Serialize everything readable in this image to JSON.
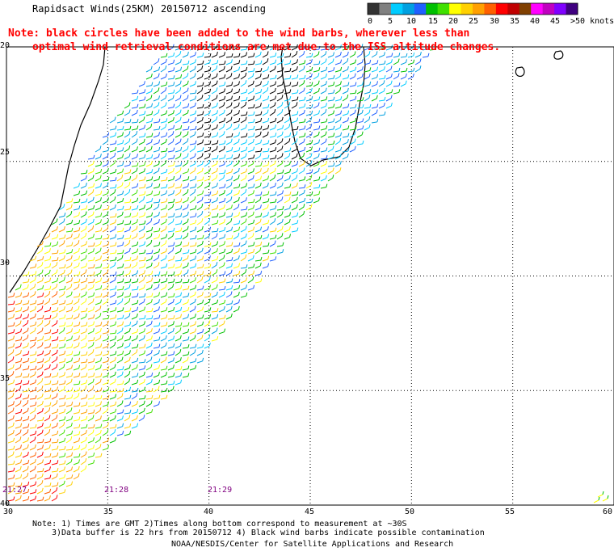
{
  "map": {
    "title": "Rapidsact Winds(25KM) 20150712 ascending",
    "note_line1": "Note: black circles have been added to the wind barbs, wherever less than",
    "note_line2": "optimal wind retrieval conditions are met due to the ISS altitude changes.",
    "lat_labels": [
      "-20",
      "-25",
      "-30",
      "-35",
      "-40"
    ],
    "lon_labels": [
      "30",
      "35",
      "40",
      "45",
      "50",
      "55",
      "60"
    ],
    "time_labels": [
      "21:27",
      "21:28",
      "21:29"
    ],
    "footer_line1": "Note: 1) Times are GMT 2)Times along bottom correspond to measurement at ~30S",
    "footer_line2": "3)Data buffer is 22 hrs from 20150712 4) Black wind barbs indicate possible contamination",
    "footer_line3": "NOAA/NESDIS/Center for Satellite Applications and Research",
    "extent": {
      "lon": [
        30,
        60
      ],
      "lat": [
        -40,
        -20
      ]
    }
  },
  "legend": {
    "labels": [
      "0",
      "5",
      "10",
      "15",
      "20",
      "25",
      "30",
      "35",
      "40",
      "45",
      ">50 knots"
    ],
    "colors": [
      "#333333",
      "#808080",
      "#00ccff",
      "#00a0e0",
      "#2060ff",
      "#00c000",
      "#40e000",
      "#ffff00",
      "#ffd000",
      "#ffa000",
      "#ff6000",
      "#ff0000",
      "#c00000",
      "#804000",
      "#ff00ff",
      "#c000c0",
      "#8000ff",
      "#400080"
    ]
  }
}
